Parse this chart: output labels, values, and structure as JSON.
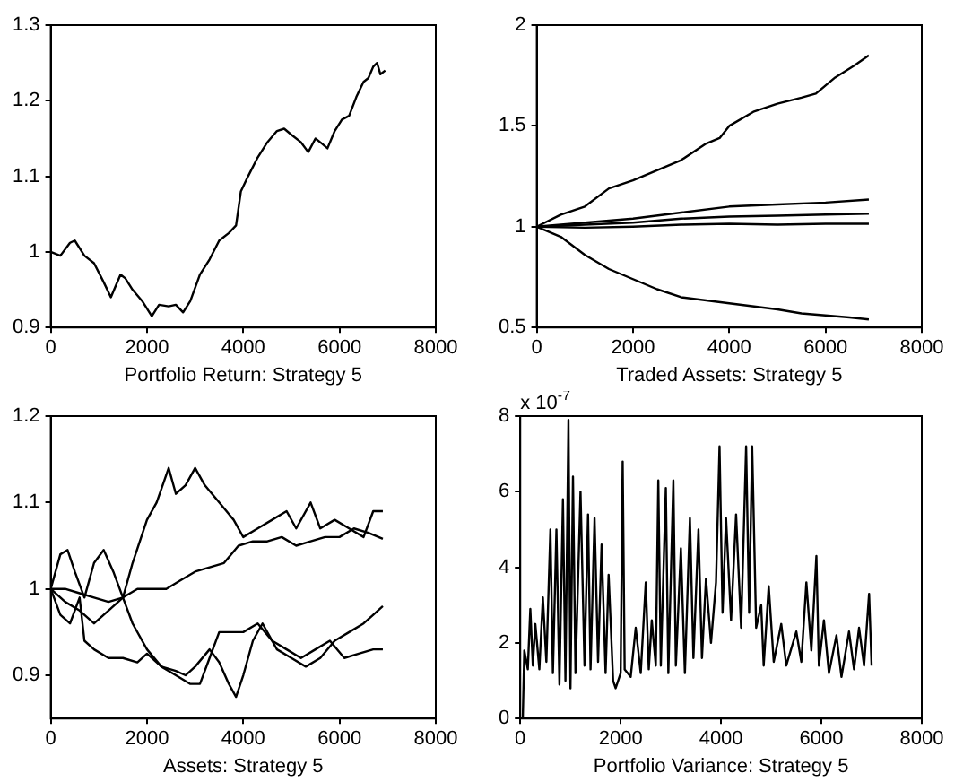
{
  "chart_data": [
    {
      "type": "line",
      "xlabel": "Portfolio Return: Strategy 5",
      "xlim": [
        0,
        8000
      ],
      "xticks": [
        0,
        2000,
        4000,
        6000,
        8000
      ],
      "ylim": [
        0.9,
        1.3
      ],
      "yticks": [
        0.9,
        1,
        1.1,
        1.2,
        1.3
      ],
      "grid": false,
      "legend": false,
      "series": [
        {
          "color": "#000000",
          "x": [
            0,
            200,
            400,
            500,
            700,
            900,
            1100,
            1250,
            1350,
            1450,
            1550,
            1700,
            1900,
            2100,
            2250,
            2450,
            2600,
            2750,
            2900,
            3100,
            3300,
            3500,
            3700,
            3850,
            3950,
            4100,
            4300,
            4500,
            4700,
            4850,
            5000,
            5200,
            5350,
            5500,
            5600,
            5750,
            5900,
            6050,
            6200,
            6350,
            6500,
            6600,
            6700,
            6780,
            6850,
            6950
          ],
          "values": [
            1.0,
            0.995,
            1.012,
            1.015,
            0.995,
            0.985,
            0.96,
            0.94,
            0.955,
            0.97,
            0.965,
            0.95,
            0.935,
            0.915,
            0.93,
            0.928,
            0.93,
            0.92,
            0.935,
            0.97,
            0.99,
            1.015,
            1.025,
            1.035,
            1.08,
            1.1,
            1.125,
            1.145,
            1.16,
            1.163,
            1.155,
            1.145,
            1.132,
            1.15,
            1.145,
            1.137,
            1.16,
            1.175,
            1.18,
            1.205,
            1.225,
            1.23,
            1.245,
            1.25,
            1.235,
            1.24
          ]
        }
      ]
    },
    {
      "type": "line",
      "xlabel": "Traded Assets: Strategy 5",
      "xlim": [
        0,
        8000
      ],
      "xticks": [
        0,
        2000,
        4000,
        6000,
        8000
      ],
      "ylim": [
        0.5,
        2
      ],
      "yticks": [
        0.5,
        1,
        1.5,
        2
      ],
      "grid": false,
      "legend": false,
      "series": [
        {
          "color": "#000000",
          "x": [
            0,
            500,
            1000,
            1500,
            2000,
            2500,
            3000,
            3500,
            3800,
            4000,
            4500,
            5000,
            5500,
            5800,
            6200,
            6600,
            6900
          ],
          "values": [
            1,
            1.06,
            1.1,
            1.19,
            1.23,
            1.28,
            1.33,
            1.41,
            1.44,
            1.5,
            1.57,
            1.61,
            1.64,
            1.66,
            1.74,
            1.8,
            1.85
          ]
        },
        {
          "color": "#000000",
          "x": [
            0,
            1000,
            2000,
            3000,
            4000,
            5000,
            6000,
            6900
          ],
          "values": [
            1,
            1.02,
            1.04,
            1.07,
            1.1,
            1.11,
            1.12,
            1.135
          ]
        },
        {
          "color": "#000000",
          "x": [
            0,
            1000,
            2000,
            3000,
            4000,
            5000,
            6000,
            6900
          ],
          "values": [
            1,
            1.01,
            1.02,
            1.04,
            1.05,
            1.055,
            1.06,
            1.065
          ]
        },
        {
          "color": "#000000",
          "x": [
            0,
            1000,
            2000,
            3000,
            4000,
            5000,
            6000,
            6900
          ],
          "values": [
            1,
            0.995,
            1.0,
            1.01,
            1.015,
            1.01,
            1.015,
            1.015
          ]
        },
        {
          "color": "#000000",
          "x": [
            0,
            500,
            1000,
            1500,
            2000,
            2500,
            3000,
            4000,
            5000,
            5500,
            6000,
            6500,
            6900
          ],
          "values": [
            1,
            0.95,
            0.86,
            0.79,
            0.74,
            0.69,
            0.65,
            0.62,
            0.59,
            0.57,
            0.56,
            0.55,
            0.54
          ]
        }
      ]
    },
    {
      "type": "line",
      "xlabel": "Assets: Strategy 5",
      "xlim": [
        0,
        8000
      ],
      "xticks": [
        0,
        2000,
        4000,
        6000,
        8000
      ],
      "ylim": [
        0.85,
        1.2
      ],
      "yticks": [
        0.9,
        1,
        1.1,
        1.2
      ],
      "grid": false,
      "legend": false,
      "series": [
        {
          "color": "#000000",
          "x": [
            0,
            300,
            600,
            900,
            1200,
            1500,
            1700,
            2000,
            2200,
            2450,
            2600,
            2800,
            3000,
            3200,
            3500,
            3800,
            4000,
            4300,
            4600,
            4900,
            5100,
            5400,
            5600,
            5900,
            6200,
            6500,
            6700,
            6900
          ],
          "values": [
            1.0,
            0.985,
            0.975,
            0.96,
            0.975,
            0.99,
            1.03,
            1.08,
            1.1,
            1.14,
            1.11,
            1.12,
            1.14,
            1.12,
            1.1,
            1.08,
            1.06,
            1.07,
            1.08,
            1.09,
            1.07,
            1.1,
            1.07,
            1.08,
            1.07,
            1.06,
            1.09,
            1.09
          ]
        },
        {
          "color": "#000000",
          "x": [
            0,
            300,
            600,
            900,
            1200,
            1500,
            1800,
            2100,
            2400,
            2700,
            3000,
            3300,
            3600,
            3900,
            4200,
            4500,
            4800,
            5100,
            5400,
            5700,
            6000,
            6300,
            6600,
            6900
          ],
          "values": [
            1.0,
            1.0,
            0.995,
            0.99,
            0.985,
            0.99,
            1.0,
            1.0,
            1.0,
            1.01,
            1.02,
            1.025,
            1.03,
            1.05,
            1.055,
            1.055,
            1.06,
            1.05,
            1.055,
            1.06,
            1.06,
            1.07,
            1.065,
            1.058
          ]
        },
        {
          "color": "#000000",
          "x": [
            0,
            200,
            350,
            500,
            700,
            900,
            1100,
            1300,
            1500,
            1700,
            2000,
            2300,
            2600,
            2900,
            3100,
            3300,
            3500,
            3700,
            4000,
            4300,
            4600,
            4900,
            5200,
            5500,
            5800,
            6100,
            6400,
            6700,
            6900
          ],
          "values": [
            1.0,
            1.04,
            1.045,
            1.02,
            0.99,
            1.03,
            1.045,
            1.02,
            0.99,
            0.96,
            0.93,
            0.91,
            0.9,
            0.89,
            0.89,
            0.92,
            0.95,
            0.95,
            0.95,
            0.96,
            0.94,
            0.93,
            0.92,
            0.93,
            0.94,
            0.92,
            0.925,
            0.93,
            0.93
          ]
        },
        {
          "color": "#000000",
          "x": [
            0,
            200,
            400,
            600,
            700,
            900,
            1200,
            1500,
            1800,
            2000,
            2300,
            2600,
            2800,
            3000,
            3300,
            3500,
            3700,
            3850,
            4000,
            4200,
            4400,
            4700,
            5000,
            5300,
            5600,
            5900,
            6200,
            6500,
            6700,
            6900
          ],
          "values": [
            1.0,
            0.97,
            0.96,
            0.99,
            0.94,
            0.93,
            0.92,
            0.92,
            0.915,
            0.925,
            0.91,
            0.905,
            0.9,
            0.91,
            0.93,
            0.915,
            0.89,
            0.875,
            0.9,
            0.94,
            0.96,
            0.93,
            0.92,
            0.91,
            0.92,
            0.94,
            0.95,
            0.96,
            0.97,
            0.98
          ]
        }
      ]
    },
    {
      "type": "line",
      "xlabel": "Portfolio Variance: Strategy 5",
      "xlim": [
        0,
        8000
      ],
      "xticks": [
        0,
        2000,
        4000,
        6000,
        8000
      ],
      "ylim": [
        0,
        8
      ],
      "yticks": [
        0,
        2,
        4,
        6,
        8
      ],
      "grid": false,
      "legend": false,
      "annotations": [
        "x 10$^{-7}$"
      ],
      "series": [
        {
          "color": "#000000",
          "x": [
            50,
            80,
            150,
            200,
            250,
            300,
            380,
            450,
            520,
            600,
            650,
            720,
            780,
            850,
            900,
            960,
            1000,
            1050,
            1100,
            1200,
            1280,
            1350,
            1400,
            1480,
            1550,
            1620,
            1700,
            1760,
            1850,
            1900,
            2000,
            2040,
            2080,
            2200,
            2300,
            2400,
            2500,
            2560,
            2620,
            2700,
            2750,
            2800,
            2900,
            2950,
            3050,
            3100,
            3200,
            3280,
            3380,
            3450,
            3550,
            3620,
            3700,
            3800,
            3900,
            3970,
            4030,
            4100,
            4200,
            4300,
            4400,
            4500,
            4560,
            4620,
            4700,
            4800,
            4850,
            4950,
            5050,
            5200,
            5300,
            5500,
            5600,
            5700,
            5800,
            5900,
            5950,
            6050,
            6150,
            6300,
            6400,
            6550,
            6650,
            6750,
            6850,
            6950,
            7000
          ],
          "values": [
            0,
            1.8,
            1.3,
            2.9,
            1.4,
            2.5,
            1.3,
            3.2,
            1.5,
            5.0,
            1.2,
            5.0,
            0.9,
            5.8,
            1.0,
            7.9,
            0.8,
            6.4,
            1.2,
            6.0,
            1.4,
            5.4,
            1.3,
            5.3,
            1.5,
            4.6,
            1.2,
            3.8,
            1.0,
            0.8,
            1.2,
            6.8,
            1.3,
            1.1,
            2.4,
            1.2,
            3.6,
            1.3,
            2.6,
            1.4,
            6.3,
            1.4,
            6.1,
            1.2,
            6.3,
            1.4,
            4.5,
            1.2,
            5.3,
            1.6,
            5.0,
            1.6,
            3.7,
            2.0,
            3.6,
            7.2,
            2.8,
            5.3,
            2.6,
            5.4,
            2.4,
            7.2,
            2.8,
            7.2,
            2.4,
            3.0,
            1.4,
            3.5,
            1.5,
            2.5,
            1.4,
            2.3,
            1.5,
            3.6,
            1.8,
            4.3,
            1.4,
            2.6,
            1.2,
            2.2,
            1.1,
            2.3,
            1.3,
            2.4,
            1.4,
            3.3,
            1.4
          ]
        }
      ]
    }
  ]
}
